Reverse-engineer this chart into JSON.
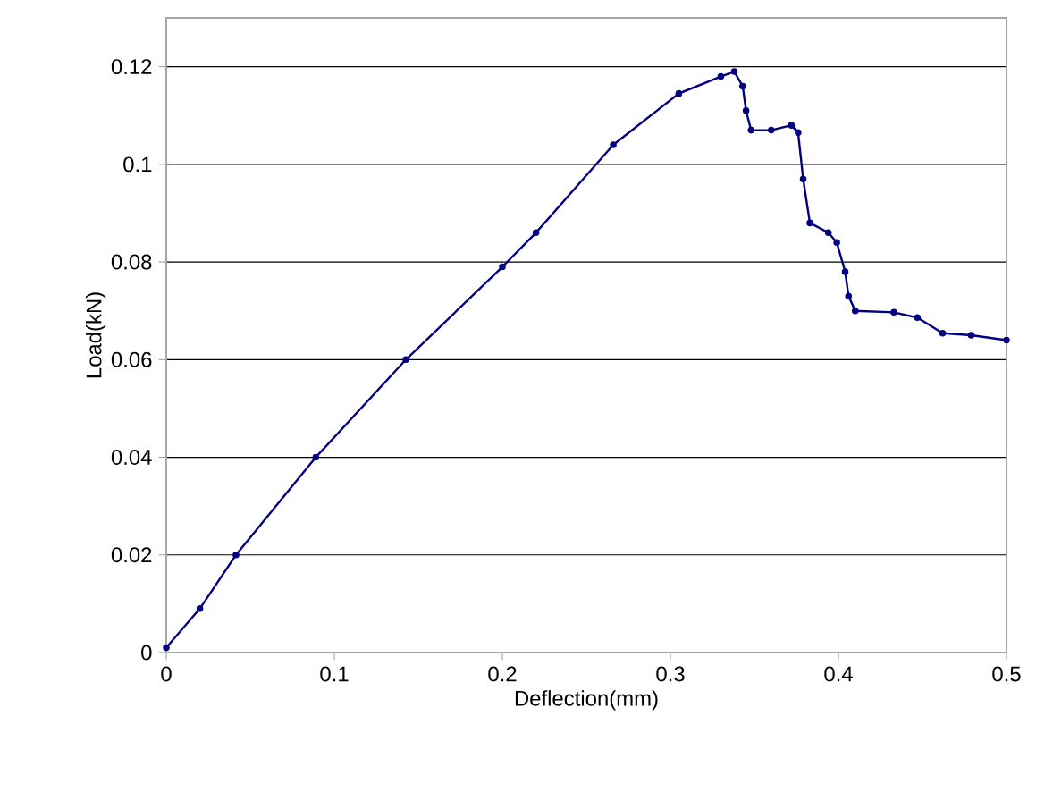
{
  "chart_data": {
    "type": "line",
    "xlabel": "Deflection(mm)",
    "ylabel": "Load(kN)",
    "x": [
      0,
      0.02,
      0.0415,
      0.089,
      0.1426,
      0.2,
      0.22,
      0.266,
      0.305,
      0.33,
      0.338,
      0.343,
      0.345,
      0.348,
      0.36,
      0.372,
      0.376,
      0.379,
      0.383,
      0.394,
      0.399,
      0.404,
      0.406,
      0.41,
      0.433,
      0.447,
      0.462,
      0.479,
      0.5
    ],
    "series": [
      {
        "color": "#000080",
        "values": [
          0.001,
          0.009,
          0.02,
          0.04,
          0.06,
          0.079,
          0.086,
          0.104,
          0.1145,
          0.118,
          0.119,
          0.116,
          0.111,
          0.107,
          0.107,
          0.108,
          0.1065,
          0.097,
          0.088,
          0.086,
          0.084,
          0.078,
          0.073,
          0.07,
          0.0697,
          0.0686,
          0.0654,
          0.065,
          0.064
        ]
      }
    ],
    "xlim": [
      0,
      0.5
    ],
    "ylim": [
      0,
      0.13
    ],
    "xticks": [
      0,
      0.1,
      0.2,
      0.3,
      0.4,
      0.5
    ],
    "yticks": [
      0,
      0.02,
      0.04,
      0.06,
      0.08,
      0.1,
      0.12
    ],
    "grid": "y",
    "marker": "circle",
    "line_style": "solid"
  }
}
